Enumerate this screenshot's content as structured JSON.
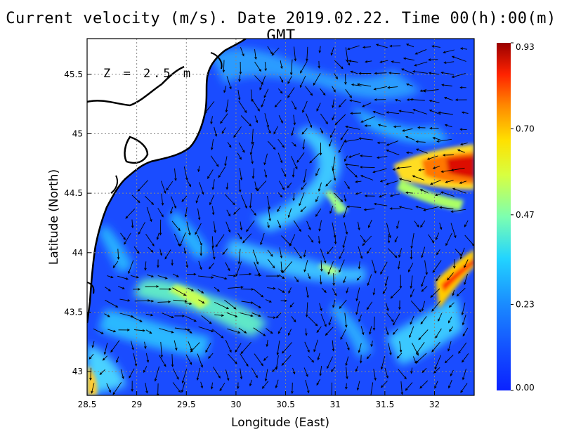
{
  "title": "Current velocity (m/s). Date 2019.02.22. Time 00(h):00(m) GMT",
  "depth_label": "Z = 2.5 m",
  "xlabel": "Longitude (East)",
  "ylabel": "Latitude (North)",
  "xticks": [
    "28.5",
    "29",
    "29.5",
    "30",
    "30.5",
    "31",
    "31.5",
    "32"
  ],
  "yticks": [
    "43",
    "43.5",
    "44",
    "44.5",
    "45",
    "45.5"
  ],
  "colorbar": {
    "ticks": [
      "0.00",
      "0.23",
      "0.47",
      "0.70",
      "0.93"
    ],
    "min": 0.0,
    "max": 0.93,
    "colors": [
      "#1030ff",
      "#1a6bff",
      "#28c8ff",
      "#7dffa0",
      "#ffff33",
      "#ffaa00",
      "#ff3300",
      "#a00000"
    ]
  },
  "map": {
    "lon_range": [
      28.5,
      32.4
    ],
    "lat_range": [
      42.8,
      45.8
    ],
    "sea_color": "#1a4cff",
    "land_color": "#ffffff",
    "grid": true
  }
}
